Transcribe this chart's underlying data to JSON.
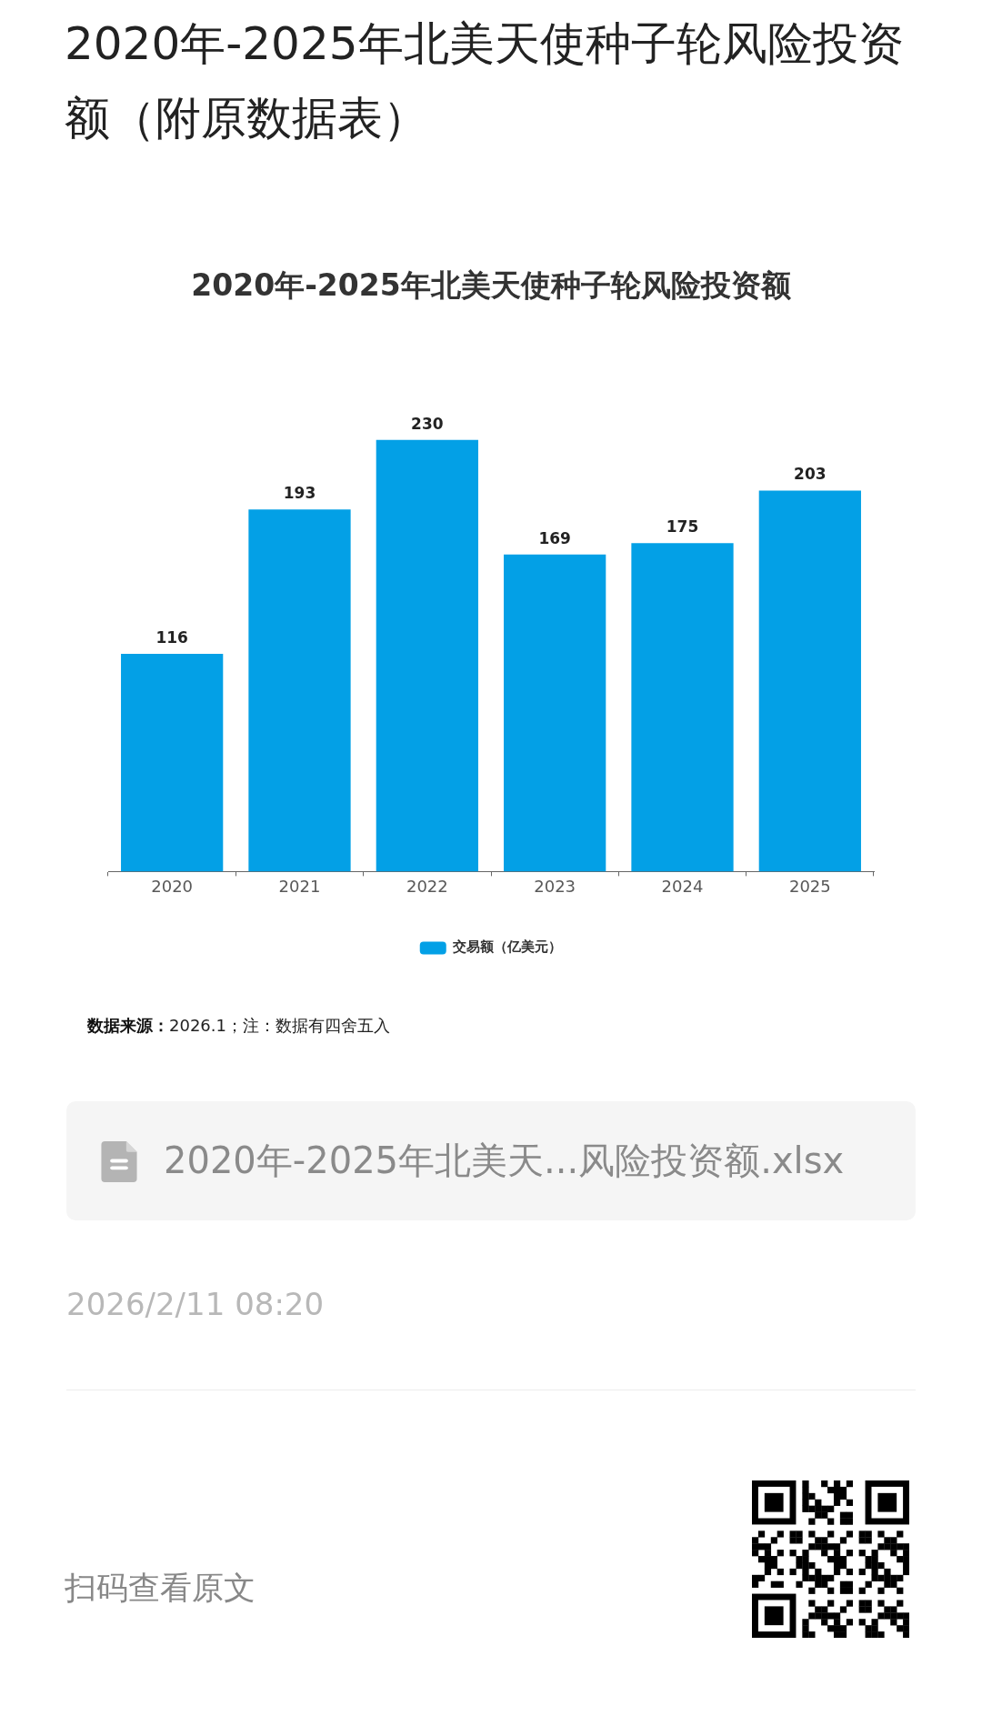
{
  "chart_data": {
    "type": "bar",
    "title": "2020年-2025年北美天使种子轮风险投资额",
    "categories": [
      "2020",
      "2021",
      "2022",
      "2023",
      "2024",
      "2025"
    ],
    "series": [
      {
        "name": "交易额（亿美元）",
        "color": "#03a0e6",
        "values": [
          116,
          193,
          230,
          169,
          175,
          203
        ]
      }
    ],
    "data_labels": true,
    "legend": "bottom",
    "tick_labels": "x",
    "annotations": [
      "2020年-2025年北美天使种子轮风险投资额（附原数据表）",
      "数据来源：",
      "2026.1；注：数据有四舍五入",
      "2020年-2025年北美天...风险投资额.xlsx",
      "2026/2/11 08:20",
      "扫码查看原文"
    ]
  }
}
